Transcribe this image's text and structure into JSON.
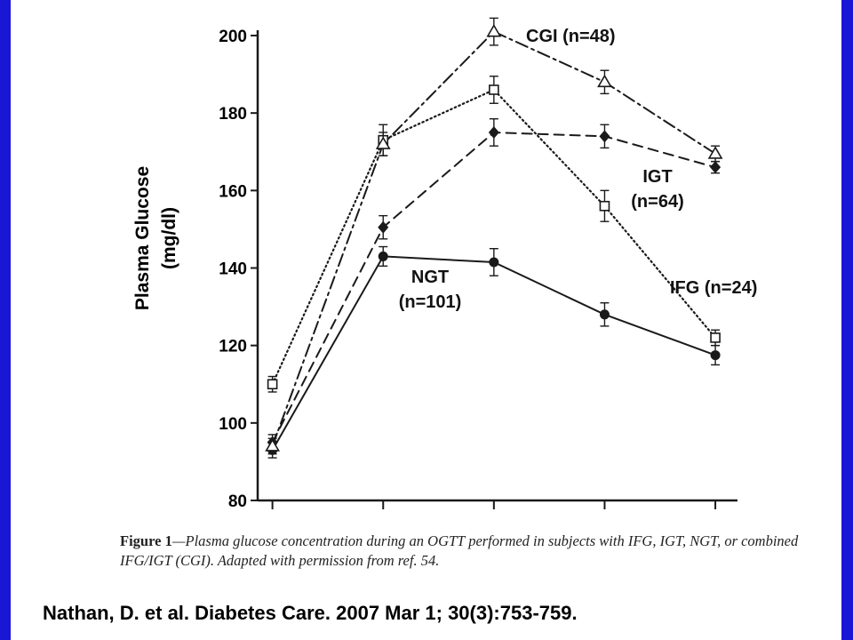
{
  "chart_data": {
    "type": "line",
    "ylabel_line1": "Plasma Glucose",
    "ylabel_line2": "(mg/dl)",
    "ylim": [
      80,
      200
    ],
    "yticks": [
      80,
      100,
      120,
      140,
      160,
      180,
      200
    ],
    "x": [
      0,
      30,
      60,
      90,
      120
    ],
    "xlim": [
      -4,
      126
    ],
    "xticks": [
      0,
      30,
      60,
      90,
      120
    ],
    "series": [
      {
        "name": "NGT",
        "n_label": "(n=101)",
        "style": "solid",
        "marker": "filled-circle",
        "values": [
          93,
          143,
          141.5,
          128,
          117.5
        ],
        "err": [
          2,
          2.5,
          3.5,
          3,
          2.5
        ]
      },
      {
        "name": "IGT",
        "n_label": "(n=64)",
        "style": "dashed",
        "marker": "filled-diamond",
        "values": [
          95,
          150.5,
          175,
          174,
          166
        ],
        "err": [
          2,
          3,
          3.5,
          3,
          1.5
        ]
      },
      {
        "name": "IFG (n=24)",
        "style": "dotted",
        "marker": "open-square",
        "values": [
          110,
          173,
          186,
          156,
          122
        ],
        "err": [
          2,
          4,
          3.5,
          4,
          2
        ]
      },
      {
        "name": "CGI (n=48)",
        "style": "dashdot",
        "marker": "open-triangle",
        "values": [
          94,
          172,
          201,
          188,
          169.5
        ],
        "err": [
          2,
          3,
          3.5,
          3,
          2
        ]
      }
    ]
  },
  "caption": {
    "lead": "Figure 1",
    "body": "—Plasma glucose concentration during an OGTT performed in subjects with IFG, IGT, NGT, or combined IFG/IGT (CGI). Adapted with permission from ref. 54."
  },
  "citation": "Nathan, D. et al. Diabetes Care. 2007 Mar 1; 30(3):753-759.",
  "colors": {
    "border": "#1a16d6",
    "line": "#1a1a1a",
    "background": "#ffffff"
  }
}
